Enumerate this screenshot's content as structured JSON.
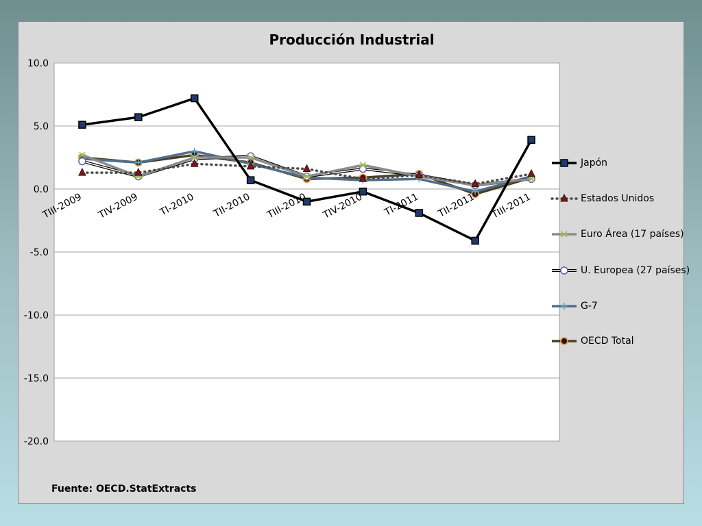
{
  "chart_data": {
    "type": "line",
    "title": "Producción Industrial",
    "categories": [
      "TIII-2009",
      "TIV-2009",
      "TI-2010",
      "TII-2010",
      "TIII-2010",
      "TIV-2010",
      "TI-2011",
      "TII-2011",
      "TIII-2011"
    ],
    "ylim": [
      -20,
      10
    ],
    "yticks": [
      "10.0",
      "5.0",
      "0.0",
      "-5.0",
      "-10.0",
      "-15.0",
      "-20.0"
    ],
    "grid": true,
    "legend_position": "right",
    "series": [
      {
        "name": "Japón",
        "color": "#000000",
        "style": "solid",
        "marker": "square",
        "values": [
          5.1,
          5.7,
          7.2,
          0.7,
          -1.0,
          -0.2,
          -1.9,
          -4.1,
          3.9
        ]
      },
      {
        "name": "Estados Unidos",
        "color": "#4d4d4d",
        "style": "dotted",
        "marker": "triangle",
        "values": [
          1.3,
          1.3,
          2.0,
          1.8,
          1.6,
          0.8,
          1.1,
          0.4,
          1.2
        ]
      },
      {
        "name": "Euro Área (17 países)",
        "color": "#8c8c8c",
        "style": "solid",
        "marker": "star",
        "values": [
          2.7,
          1.0,
          2.5,
          2.5,
          1.0,
          1.9,
          1.0,
          0.3,
          0.8
        ]
      },
      {
        "name": "U. Europea (27 países)",
        "color": "#000000",
        "style": "double",
        "marker": "circle-open",
        "values": [
          2.2,
          1.0,
          2.4,
          2.6,
          1.0,
          1.6,
          1.1,
          0.3,
          0.8
        ]
      },
      {
        "name": "G-7",
        "color": "#4f6e8a",
        "style": "solid",
        "marker": "plus",
        "values": [
          2.4,
          2.1,
          3.0,
          2.0,
          0.9,
          0.7,
          0.8,
          -0.2,
          1.0
        ]
      },
      {
        "name": "OECD Total",
        "color": "#4a4020",
        "style": "solid",
        "marker": "circle-filled",
        "values": [
          2.5,
          2.1,
          2.7,
          2.1,
          0.8,
          0.9,
          1.2,
          -0.4,
          0.9
        ]
      }
    ]
  },
  "source_note": "Fuente: OECD.StatExtracts"
}
